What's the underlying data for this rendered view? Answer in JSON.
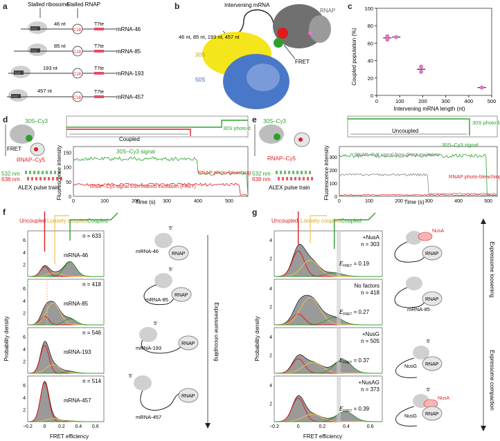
{
  "panel_letters": [
    "a",
    "b",
    "c",
    "d",
    "e",
    "f",
    "g"
  ],
  "panel_a": {
    "header_ribosome": "Stalled ribosome",
    "header_rnap": "Stalled RNAP",
    "aug": "AUG",
    "c18": "C18",
    "t7te": "T7te",
    "constructs": [
      {
        "spacer": "46 nt",
        "label": "mRNA-46"
      },
      {
        "spacer": "85 nt",
        "label": "mRNA-85"
      },
      {
        "spacer": "193 nt",
        "label": "mRNA-193"
      },
      {
        "spacer": "457 nt",
        "label": "mRNA-457"
      }
    ]
  },
  "panel_b": {
    "intervening": "Intervening mRNA",
    "lengths": "46 nt, 85 nt, 193 nt, 457 nt",
    "rnap": "RNAP",
    "s30": "30S",
    "s50": "50S",
    "fret": "FRET"
  },
  "chart_data": {
    "type": "scatter",
    "xlabel": "Intervening mRNA length (nt)",
    "ylabel": "Coupled population (%)",
    "xlim": [
      0,
      500
    ],
    "ylim": [
      0,
      100
    ],
    "xticks": [
      0,
      100,
      200,
      300,
      400,
      500
    ],
    "yticks": [
      0,
      20,
      40,
      60,
      80,
      100
    ],
    "points": [
      {
        "x": 46,
        "y": 64
      },
      {
        "x": 46,
        "y": 68
      },
      {
        "x": 85,
        "y": 67
      },
      {
        "x": 193,
        "y": 33
      },
      {
        "x": 193,
        "y": 27
      },
      {
        "x": 457,
        "y": 9
      }
    ],
    "means": [
      {
        "x": 46,
        "y": 66
      },
      {
        "x": 85,
        "y": 67
      },
      {
        "x": 193,
        "y": 30
      },
      {
        "x": 457,
        "y": 9
      }
    ]
  },
  "panel_d": {
    "cy3": "30S–Cy3",
    "cy5": "RNAP–Cy5",
    "fret": "FRET",
    "l532": "532 nm",
    "l638": "638 nm",
    "alex": "ALEX pulse train",
    "coupled": "Coupled",
    "bleach30s": "30S photo-bleaching",
    "cy3_signal": "30S–Cy3 signal",
    "rnap_bleach": "RNAP photo-bleaching",
    "cy5_signal": "RNAP–Cy5 signal from indirect excitation (FRET)",
    "xlabel": "Time (s)",
    "ylabel": "Fluorescence intensity",
    "xticks": [
      "0",
      "100",
      "200",
      "300",
      "400",
      "500"
    ],
    "yticks": [
      "0",
      "50",
      "100",
      "150"
    ]
  },
  "panel_e": {
    "cy3": "30S–Cy3",
    "cy5": "RNAP–Cy5",
    "l532": "532 nm",
    "l638": "638 nm",
    "alex": "ALEX pulse train",
    "uncoupled": "Uncoupled",
    "bleach30s": "30S photo-bleaching",
    "cy3_signal": "30S–Cy3 signal",
    "cy5_signal": "RNAP–Cy5 signal from direct excitation",
    "rnap_bleach": "RNAP photo-bleaching",
    "xlabel": "Time (s)",
    "ylabel": "Fluorescence intensity",
    "xticks": [
      "0",
      "100",
      "200",
      "300",
      "400",
      "500"
    ],
    "yticks": [
      "0",
      "100",
      "200",
      "300"
    ]
  },
  "panel_f": {
    "headers": [
      "Uncoupled",
      "Loosely coupled",
      "Coupled"
    ],
    "ylabel": "Probability density",
    "xlabel": "FRET efficiency",
    "xticks": [
      "−0.2",
      "0",
      "0.2",
      "0.4",
      "0.6"
    ],
    "yticks": [
      "2",
      "4",
      "6"
    ],
    "histograms": [
      {
        "name": "mRNA-46",
        "n": "n = 633"
      },
      {
        "name": "mRNA-85",
        "n": "n = 418"
      },
      {
        "name": "mRNA-193",
        "n": "n = 546"
      },
      {
        "name": "mRNA-457",
        "n": "n = 514"
      }
    ],
    "cartoons": [
      "mRNA-46",
      "mRNA-85",
      "mRNA-193",
      "mRNA-457"
    ],
    "rnap": "RNAP",
    "five_prime": "5′",
    "arrow": "Expressome uncoupling"
  },
  "panel_g": {
    "headers": [
      "Uncoupled",
      "Loosely coupled",
      "Coupled"
    ],
    "ylabel": "Probability density",
    "xlabel": "FRET efficiency",
    "xticks": [
      "−0.2",
      "0",
      "0.2",
      "0.4",
      "0.6"
    ],
    "yticks": [
      "2",
      "4"
    ],
    "histograms": [
      {
        "cond": "+NusA",
        "n": "n = 303",
        "e_prefix": "E",
        "e_sub": "FRET",
        "e_val": " = 0.19"
      },
      {
        "cond": "No factors",
        "n": "n = 418",
        "e_prefix": "E",
        "e_sub": "FRET",
        "e_val": " = 0.27"
      },
      {
        "cond": "+NusG",
        "n": "n = 505",
        "e_prefix": "E",
        "e_sub": "FRET",
        "e_val": " = 0.37"
      },
      {
        "cond": "+NusAG",
        "n": "n = 373",
        "e_prefix": "E",
        "e_sub": "FRET",
        "e_val": " = 0.39"
      }
    ],
    "nusa": "NusA",
    "nusg": "NusG",
    "rnap": "RNAP",
    "mrna85": "mRNA-85",
    "five_prime": "5′",
    "arrow_top": "Expressome loosening",
    "arrow_bottom": "Expressome compaction"
  },
  "colors": {
    "green": "#2ca02c",
    "red": "#e31a1c",
    "gold": "#f2c14e",
    "pink": "#e377c2",
    "grey": "#888888",
    "ribosome30s": "#f5e51b",
    "ribosome50s": "#4a78c8"
  }
}
